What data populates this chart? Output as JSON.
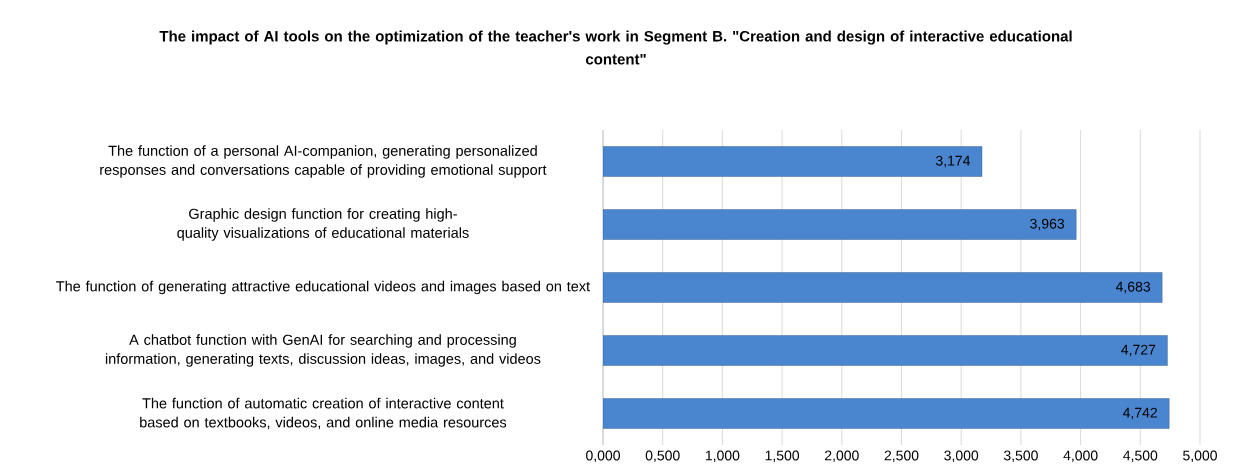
{
  "chart_data": {
    "type": "bar",
    "orientation": "horizontal",
    "title": "The impact of AI tools on the optimization of the teacher's work in Segment B. \"Creation and design of interactive educational content\"",
    "categories": [
      "The function of a personal AI-companion, generating personalized responses and conversations capable of providing emotional support",
      "Graphic design function for creating high-quality visualizations of educational materials",
      "The function of generating attractive educational videos and images based on text",
      "A chatbot function with GenAI for searching and processing information, generating texts, discussion ideas, images, and videos",
      "The function of automatic creation of interactive content based on textbooks, videos, and online media resources"
    ],
    "values": [
      3.174,
      3.963,
      4.683,
      4.727,
      4.742
    ],
    "value_labels": [
      "3,174",
      "3,963",
      "4,683",
      "4,727",
      "4,742"
    ],
    "color": "#4a86d0",
    "xlim": [
      0,
      5
    ],
    "xticks": [
      {
        "value": 0,
        "label": "0,000"
      },
      {
        "value": 0.5,
        "label": "0,500"
      },
      {
        "value": 1,
        "label": "1,000"
      },
      {
        "value": 1.5,
        "label": "1,500"
      },
      {
        "value": 2,
        "label": "2,000"
      },
      {
        "value": 2.5,
        "label": "2,500"
      },
      {
        "value": 3,
        "label": "3,000"
      },
      {
        "value": 3.5,
        "label": "3,500"
      },
      {
        "value": 4,
        "label": "4,000"
      },
      {
        "value": 4.5,
        "label": "4,500"
      },
      {
        "value": 5,
        "label": "5,000"
      }
    ],
    "grid": "x"
  }
}
